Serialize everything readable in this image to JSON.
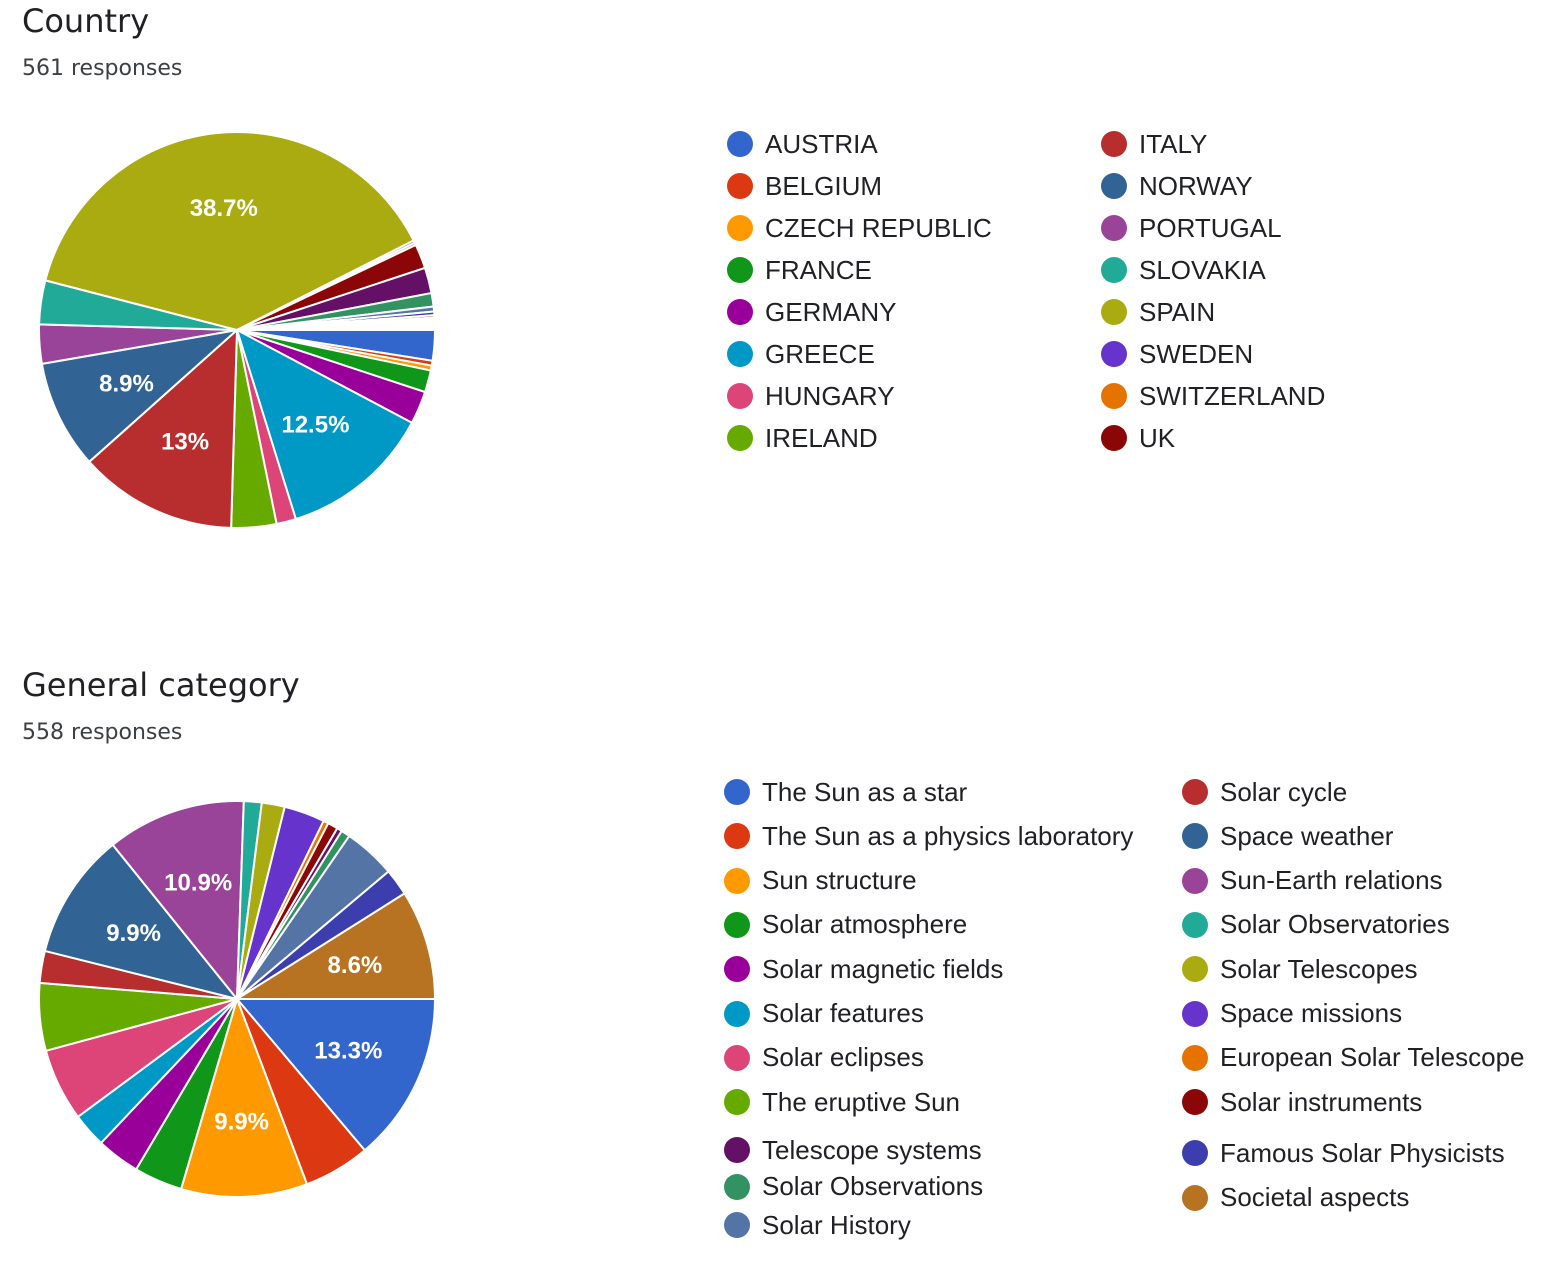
{
  "chart_data": [
    {
      "type": "pie",
      "title": "Country",
      "subtitle": "561 responses",
      "legend_position": "right",
      "slices": [
        {
          "label": "AUSTRIA",
          "value": 2.5,
          "color": "#3366cc"
        },
        {
          "label": "BELGIUM",
          "value": 0.4,
          "color": "#dc3912"
        },
        {
          "label": "CZECH REPUBLIC",
          "value": 0.4,
          "color": "#ff9900"
        },
        {
          "label": "FRANCE",
          "value": 1.8,
          "color": "#109618"
        },
        {
          "label": "GERMANY",
          "value": 2.7,
          "color": "#990099"
        },
        {
          "label": "GREECE",
          "value": 12.5,
          "color": "#0099c6",
          "show_label": "12.5%"
        },
        {
          "label": "HUNGARY",
          "value": 1.6,
          "color": "#dd4477"
        },
        {
          "label": "IRELAND",
          "value": 3.7,
          "color": "#66aa00"
        },
        {
          "label": "ITALY",
          "value": 13,
          "color": "#b82e2e",
          "show_label": "13%"
        },
        {
          "label": "NORWAY",
          "value": 8.9,
          "color": "#316395",
          "show_label": "8.9%"
        },
        {
          "label": "PORTUGAL",
          "value": 3.2,
          "color": "#994499"
        },
        {
          "label": "SLOVAKIA",
          "value": 3.6,
          "color": "#22aa99"
        },
        {
          "label": "SPAIN",
          "value": 38.7,
          "color": "#aaaa11",
          "show_label": "38.7%"
        },
        {
          "label": "SWEDEN",
          "value": 0.2,
          "color": "#6633cc"
        },
        {
          "label": "SWITZERLAND",
          "value": 0.2,
          "color": "#e67300"
        },
        {
          "label": "UK",
          "value": 2.0,
          "color": "#8b0707"
        },
        {
          "label": "",
          "value": 2.1,
          "color": "#651067"
        },
        {
          "label": "",
          "value": 1.1,
          "color": "#329262"
        },
        {
          "label": "",
          "value": 0.4,
          "color": "#5574a6"
        },
        {
          "label": "",
          "value": 0.3,
          "color": "#3b3eac"
        },
        {
          "label": "",
          "value": 0.2,
          "color": "#b77322"
        },
        {
          "label": "",
          "value": 0.1,
          "color": "#16d620"
        },
        {
          "label": "",
          "value": 0.1,
          "color": "#b91383"
        },
        {
          "label": "",
          "value": 0.1,
          "color": "#f4359e"
        },
        {
          "label": "",
          "value": 0.1,
          "color": "#9c5935"
        },
        {
          "label": "",
          "value": 0.1,
          "color": "#a9c413"
        },
        {
          "label": "",
          "value": 0.1,
          "color": "#2a778d"
        },
        {
          "label": "",
          "value": 0.1,
          "color": "#668d1c"
        },
        {
          "label": "",
          "value": 0.1,
          "color": "#bea413"
        },
        {
          "label": "",
          "value": 0.1,
          "color": "#0c5922"
        },
        {
          "label": "",
          "value": 0.1,
          "color": "#743411"
        }
      ],
      "legend": [
        {
          "label": "AUSTRIA",
          "color": "#3366cc"
        },
        {
          "label": "BELGIUM",
          "color": "#dc3912"
        },
        {
          "label": "CZECH REPUBLIC",
          "color": "#ff9900"
        },
        {
          "label": "FRANCE",
          "color": "#109618"
        },
        {
          "label": "GERMANY",
          "color": "#990099"
        },
        {
          "label": "GREECE",
          "color": "#0099c6"
        },
        {
          "label": "HUNGARY",
          "color": "#dd4477"
        },
        {
          "label": "IRELAND",
          "color": "#66aa00"
        },
        {
          "label": "ITALY",
          "color": "#b82e2e"
        },
        {
          "label": "NORWAY",
          "color": "#316395"
        },
        {
          "label": "PORTUGAL",
          "color": "#994499"
        },
        {
          "label": "SLOVAKIA",
          "color": "#22aa99"
        },
        {
          "label": "SPAIN",
          "color": "#aaaa11"
        },
        {
          "label": "SWEDEN",
          "color": "#6633cc"
        },
        {
          "label": "SWITZERLAND",
          "color": "#e67300"
        },
        {
          "label": "UK",
          "color": "#8b0707"
        }
      ]
    },
    {
      "type": "pie",
      "title": "General category",
      "subtitle": "558 responses",
      "legend_position": "right",
      "slices": [
        {
          "label": "The Sun as a star",
          "value": 13.3,
          "color": "#3366cc",
          "show_label": "13.3%"
        },
        {
          "label": "The Sun as a physics laboratory",
          "value": 5.2,
          "color": "#dc3912"
        },
        {
          "label": "Sun structure",
          "value": 9.9,
          "color": "#ff9900",
          "show_label": "9.9%"
        },
        {
          "label": "Solar atmosphere",
          "value": 3.8,
          "color": "#109618"
        },
        {
          "label": "Solar magnetic fields",
          "value": 3.4,
          "color": "#990099"
        },
        {
          "label": "Solar features",
          "value": 2.7,
          "color": "#0099c6"
        },
        {
          "label": "Solar eclipses",
          "value": 5.7,
          "color": "#dd4477"
        },
        {
          "label": "The eruptive Sun",
          "value": 5.3,
          "color": "#66aa00"
        },
        {
          "label": "Solar cycle",
          "value": 2.5,
          "color": "#b82e2e"
        },
        {
          "label": "Space weather",
          "value": 9.9,
          "color": "#316395",
          "show_label": "9.9%"
        },
        {
          "label": "Sun-Earth relations",
          "value": 10.9,
          "color": "#994499",
          "show_label": "10.9%"
        },
        {
          "label": "Solar Observatories",
          "value": 1.4,
          "color": "#22aa99"
        },
        {
          "label": "Solar Telescopes",
          "value": 1.8,
          "color": "#aaaa11"
        },
        {
          "label": "Space missions",
          "value": 3.2,
          "color": "#6633cc"
        },
        {
          "label": "European Solar Telescope",
          "value": 0.4,
          "color": "#e67300"
        },
        {
          "label": "Solar instruments",
          "value": 0.8,
          "color": "#8b0707"
        },
        {
          "label": "Telescope systems",
          "value": 0.4,
          "color": "#651067"
        },
        {
          "label": "Solar Observations",
          "value": 0.7,
          "color": "#329262"
        },
        {
          "label": "Solar History",
          "value": 4.1,
          "color": "#5574a6"
        },
        {
          "label": "Famous Solar Physicists",
          "value": 2.1,
          "color": "#3b3eac"
        },
        {
          "label": "Societal aspects",
          "value": 8.6,
          "color": "#b77322",
          "show_label": "8.6%"
        }
      ],
      "legend": [
        {
          "label": "The Sun as a star",
          "color": "#3366cc"
        },
        {
          "label": "The Sun as a physics laboratory",
          "color": "#dc3912"
        },
        {
          "label": "Sun structure",
          "color": "#ff9900"
        },
        {
          "label": "Solar atmosphere",
          "color": "#109618"
        },
        {
          "label": "Solar magnetic fields",
          "color": "#990099"
        },
        {
          "label": "Solar features",
          "color": "#0099c6"
        },
        {
          "label": "Solar eclipses",
          "color": "#dd4477"
        },
        {
          "label": "The eruptive Sun",
          "color": "#66aa00"
        },
        {
          "label": "Telescope systems",
          "color": "#651067"
        },
        {
          "label": "Solar Observations",
          "color": "#329262"
        },
        {
          "label": "Solar History",
          "color": "#5574a6"
        },
        {
          "label": "Solar cycle",
          "color": "#b82e2e"
        },
        {
          "label": "Space weather",
          "color": "#316395"
        },
        {
          "label": "Sun-Earth relations",
          "color": "#994499"
        },
        {
          "label": "Solar Observatories",
          "color": "#22aa99"
        },
        {
          "label": "Solar Telescopes",
          "color": "#aaaa11"
        },
        {
          "label": "Space missions",
          "color": "#6633cc"
        },
        {
          "label": "European Solar Telescope",
          "color": "#e67300"
        },
        {
          "label": "Solar instruments",
          "color": "#8b0707"
        },
        {
          "label": "Famous Solar Physicists",
          "color": "#3b3eac"
        },
        {
          "label": "Societal aspects",
          "color": "#b77322"
        }
      ]
    }
  ]
}
